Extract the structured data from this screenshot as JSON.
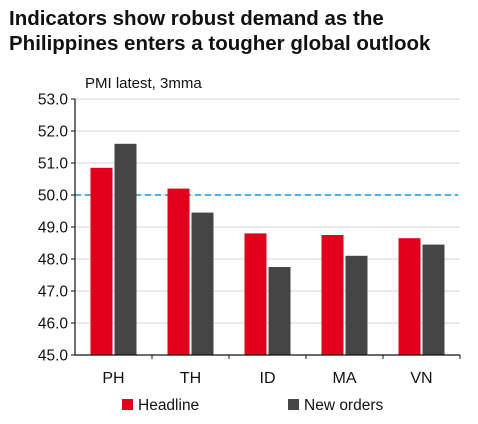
{
  "header": {
    "title_line1": "Indicators show robust demand as the",
    "title_line2": "Philippines enters a tougher global outlook"
  },
  "chart_data": {
    "type": "bar",
    "subtitle": "PMI latest, 3mma",
    "categories": [
      "PH",
      "TH",
      "ID",
      "MA",
      "VN"
    ],
    "series": [
      {
        "name": "Headline",
        "color": "#e3001b",
        "values": [
          50.85,
          50.2,
          48.8,
          48.75,
          48.65
        ]
      },
      {
        "name": "New orders",
        "color": "#454545",
        "values": [
          51.6,
          49.45,
          47.75,
          48.1,
          48.45
        ]
      }
    ],
    "ylim": [
      45.0,
      53.0
    ],
    "yticks": [
      "53.0",
      "52.0",
      "51.0",
      "50.0",
      "49.0",
      "48.0",
      "47.0",
      "46.0",
      "45.0"
    ],
    "reference_line": {
      "value": 50.0,
      "color": "#4db3e6",
      "style": "dashed"
    },
    "grid": true,
    "legend_position": "bottom"
  }
}
